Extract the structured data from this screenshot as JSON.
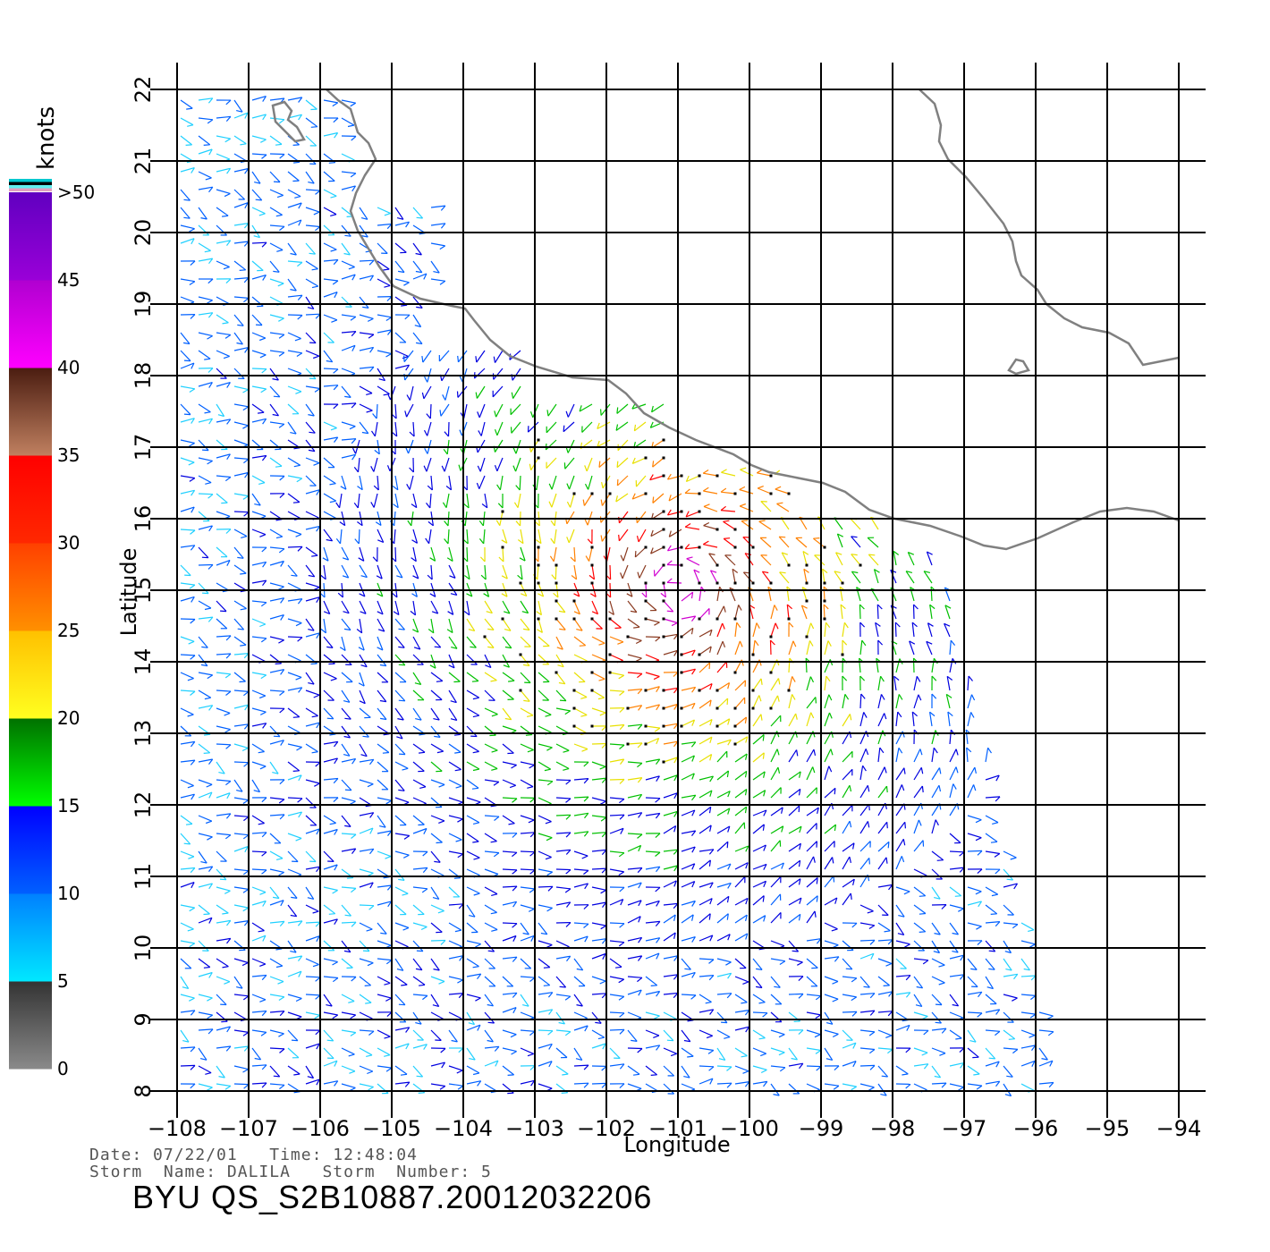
{
  "map": {
    "x_axis_title": "Longitude",
    "y_axis_title": "Latitude",
    "lon_ticks": [
      "−108",
      "−107",
      "−106",
      "−105",
      "−104",
      "−103",
      "−102",
      "−101",
      "−100",
      "−99",
      "−98",
      "−97",
      "−96",
      "−95",
      "−94"
    ],
    "lat_ticks": [
      "8",
      "9",
      "10",
      "11",
      "12",
      "13",
      "14",
      "15",
      "16",
      "17",
      "18",
      "19",
      "20",
      "21",
      "22"
    ],
    "lon_range": [
      -108,
      -94
    ],
    "lat_range": [
      8,
      22
    ],
    "grid": true,
    "coastline_color": "#808080"
  },
  "colorbar": {
    "unit": "knots",
    "labels": [
      "0",
      "5",
      "10",
      "15",
      "20",
      "25",
      "30",
      "35",
      "40",
      "45",
      ">50"
    ],
    "segments": [
      {
        "from": 0,
        "to": 5,
        "top": "#333333",
        "bottom": "#8a8a8a"
      },
      {
        "from": 5,
        "to": 10,
        "top": "#0080ff",
        "bottom": "#00e8ff"
      },
      {
        "from": 10,
        "to": 15,
        "top": "#0000ff",
        "bottom": "#0060ff"
      },
      {
        "from": 15,
        "to": 20,
        "top": "#007000",
        "bottom": "#00ff00"
      },
      {
        "from": 20,
        "to": 25,
        "top": "#ffc000",
        "bottom": "#ffff20"
      },
      {
        "from": 25,
        "to": 30,
        "top": "#ff4000",
        "bottom": "#ff9000"
      },
      {
        "from": 30,
        "to": 35,
        "top": "#ff0000",
        "bottom": "#ff2800"
      },
      {
        "from": 35,
        "to": 40,
        "top": "#4a1c10",
        "bottom": "#c08060"
      },
      {
        "from": 40,
        "to": 45,
        "top": "#b000d0",
        "bottom": "#ff00ff"
      },
      {
        "from": 45,
        "to": 50,
        "top": "#6000c0",
        "bottom": "#9a00d8"
      }
    ],
    "cap_colors": [
      "#00c8d0",
      "#000000",
      "#60f0f0",
      "#e0a0c0"
    ]
  },
  "metadata": {
    "date_label": "Date:",
    "date": "07/22/01",
    "time_label": "Time:",
    "time": "12:48:04",
    "storm_name_label": "Storm  Name:",
    "storm_name": "DALILA",
    "storm_number_label": "Storm  Number:",
    "storm_number": "5"
  },
  "file_id": "BYU  QS_S2B10887.20012032206",
  "storm_center": {
    "lon": -101,
    "lat": 15
  }
}
